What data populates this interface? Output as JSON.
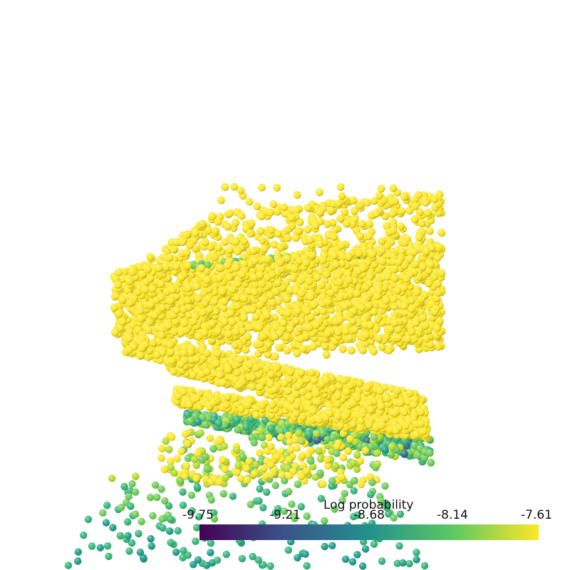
{
  "colorbar": {
    "title": "Log probability",
    "ticks": [
      "-9.75",
      "-9.21",
      "-8.68",
      "-8.14",
      "-7.61"
    ],
    "colormap": [
      "#440154",
      "#3b528b",
      "#21918c",
      "#5ec962",
      "#fde725"
    ]
  },
  "point_colors": {
    "high": "#fde725",
    "mid_high": "#b5de2b",
    "mid": "#6ece58",
    "mid_low": "#35b779",
    "low": "#1f9e89",
    "lowest": "#31688e"
  }
}
